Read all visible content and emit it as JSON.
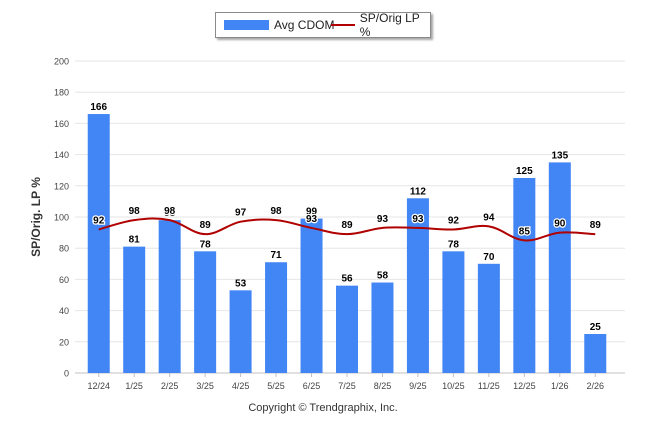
{
  "chart_data": {
    "type": "bar",
    "categories": [
      "12/24",
      "1/25",
      "2/25",
      "3/25",
      "4/25",
      "5/25",
      "6/25",
      "7/25",
      "8/25",
      "9/25",
      "10/25",
      "11/25",
      "12/25",
      "1/26",
      "2/26"
    ],
    "series": [
      {
        "name": "Avg CDOM",
        "type": "bar",
        "color": "#4285f4",
        "values": [
          166,
          81,
          98,
          78,
          53,
          71,
          99,
          56,
          58,
          112,
          78,
          70,
          125,
          135,
          25
        ]
      },
      {
        "name": "SP/Orig LP %",
        "type": "line",
        "color": "#b00000",
        "values": [
          92,
          98,
          98,
          89,
          97,
          98,
          93,
          89,
          93,
          93,
          92,
          94,
          85,
          90,
          89
        ]
      }
    ],
    "ylabel": "SP/Orig. LP %",
    "ylim": [
      0,
      200
    ],
    "yticks": [
      0,
      20,
      40,
      60,
      80,
      100,
      120,
      140,
      160,
      180,
      200
    ],
    "legend_position": "top-center",
    "grid": true
  },
  "footer": "Copyright © Trendgraphix, Inc."
}
